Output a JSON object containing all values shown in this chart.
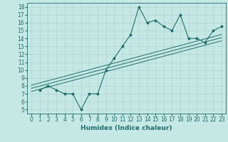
{
  "xlabel": "Humidex (Indice chaleur)",
  "bg_color": "#c5e8e5",
  "line_color": "#1e6e6e",
  "grid_color": "#b0d4d0",
  "xlim": [
    -0.5,
    23.5
  ],
  "ylim": [
    4.5,
    18.5
  ],
  "xticks": [
    0,
    1,
    2,
    3,
    4,
    5,
    6,
    7,
    8,
    9,
    10,
    11,
    12,
    13,
    14,
    15,
    16,
    17,
    18,
    19,
    20,
    21,
    22,
    23
  ],
  "yticks": [
    5,
    6,
    7,
    8,
    9,
    10,
    11,
    12,
    13,
    14,
    15,
    16,
    17,
    18
  ],
  "data_x": [
    1,
    2,
    3,
    4,
    5,
    6,
    7,
    8,
    9,
    10,
    11,
    12,
    13,
    14,
    15,
    16,
    17,
    18,
    19,
    20,
    21,
    22,
    23
  ],
  "data_y": [
    7.5,
    8.0,
    7.5,
    7.0,
    7.0,
    5.0,
    7.0,
    7.0,
    10.0,
    11.5,
    13.0,
    14.5,
    18.0,
    16.0,
    16.3,
    15.5,
    15.0,
    17.0,
    14.0,
    14.0,
    13.5,
    15.0,
    15.5
  ],
  "reg_lines": [
    {
      "x0": 0,
      "y0": 7.3,
      "x1": 23,
      "y1": 13.7
    },
    {
      "x0": 0,
      "y0": 7.7,
      "x1": 23,
      "y1": 14.1
    },
    {
      "x0": 0,
      "y0": 8.1,
      "x1": 23,
      "y1": 14.5
    }
  ],
  "tick_fontsize": 5.5,
  "xlabel_fontsize": 6.5
}
